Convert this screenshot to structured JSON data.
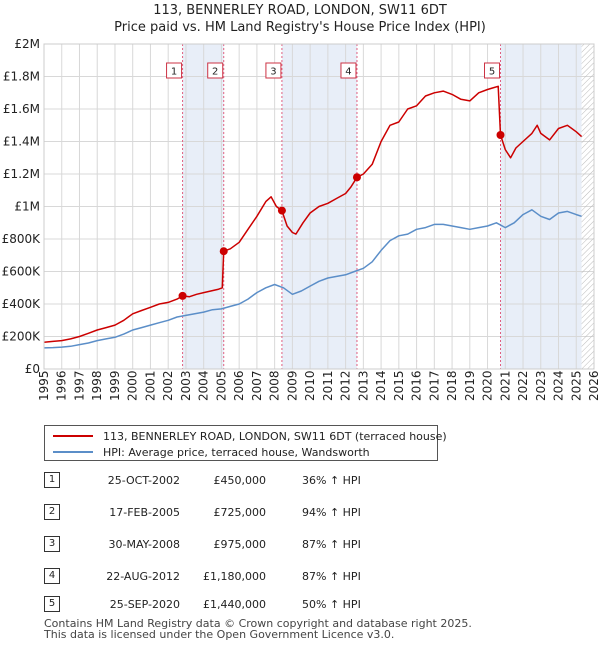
{
  "chart_data": {
    "type": "line",
    "title": "113, BENNERLEY ROAD, LONDON, SW11 6DT",
    "subtitle": "Price paid vs. HM Land Registry's House Price Index (HPI)",
    "xlim": [
      1995,
      2026
    ],
    "ylim": [
      0,
      2000000
    ],
    "y_ticks": [
      0,
      200000,
      400000,
      600000,
      800000,
      1000000,
      1200000,
      1400000,
      1600000,
      1800000,
      2000000
    ],
    "y_tick_labels": [
      "£0",
      "£200K",
      "£400K",
      "£600K",
      "£800K",
      "£1M",
      "£1.2M",
      "£1.4M",
      "£1.6M",
      "£1.8M",
      "£2M"
    ],
    "x_ticks": [
      1995,
      1996,
      1997,
      1998,
      1999,
      2000,
      2001,
      2002,
      2003,
      2004,
      2005,
      2006,
      2007,
      2008,
      2009,
      2010,
      2011,
      2012,
      2013,
      2014,
      2015,
      2016,
      2017,
      2018,
      2019,
      2020,
      2021,
      2022,
      2023,
      2024,
      2025,
      2026
    ],
    "x_tick_labels": [
      "1995",
      "1996",
      "1997",
      "1998",
      "1999",
      "2000",
      "2001",
      "2002",
      "2003",
      "2004",
      "2005",
      "2006",
      "2007",
      "2008",
      "2009",
      "2010",
      "2011",
      "2012",
      "2013",
      "2014",
      "2015",
      "2016",
      "2017",
      "2018",
      "2019",
      "2020",
      "2021",
      "2022",
      "2023",
      "2024",
      "2025",
      "2026"
    ],
    "grid": true,
    "series": [
      {
        "name": "113, BENNERLEY ROAD, LONDON, SW11 6DT (terraced house)",
        "color": "#cc0000",
        "x": [
          1995.0,
          1995.5,
          1996.0,
          1996.5,
          1997.0,
          1997.5,
          1998.0,
          1998.5,
          1999.0,
          1999.5,
          2000.0,
          2000.5,
          2001.0,
          2001.5,
          2002.0,
          2002.5,
          2002.81,
          2003.2,
          2003.6,
          2004.0,
          2004.4,
          2004.8,
          2005.05,
          2005.13,
          2005.5,
          2006.0,
          2006.5,
          2007.0,
          2007.5,
          2007.8,
          2008.1,
          2008.41,
          2008.7,
          2009.0,
          2009.2,
          2009.6,
          2010.0,
          2010.5,
          2011.0,
          2011.5,
          2012.0,
          2012.3,
          2012.64,
          2013.0,
          2013.5,
          2014.0,
          2014.5,
          2015.0,
          2015.5,
          2016.0,
          2016.5,
          2017.0,
          2017.5,
          2018.0,
          2018.5,
          2019.0,
          2019.5,
          2020.0,
          2020.3,
          2020.6,
          2020.73,
          2021.0,
          2021.3,
          2021.6,
          2022.0,
          2022.5,
          2022.8,
          2023.0,
          2023.5,
          2024.0,
          2024.5,
          2025.0,
          2025.3
        ],
        "values": [
          165000,
          170000,
          175000,
          185000,
          200000,
          220000,
          240000,
          255000,
          270000,
          300000,
          340000,
          360000,
          380000,
          400000,
          410000,
          430000,
          450000,
          445000,
          460000,
          470000,
          480000,
          490000,
          500000,
          725000,
          740000,
          780000,
          860000,
          940000,
          1030000,
          1060000,
          1000000,
          975000,
          880000,
          840000,
          830000,
          900000,
          960000,
          1000000,
          1020000,
          1050000,
          1080000,
          1120000,
          1180000,
          1200000,
          1260000,
          1400000,
          1500000,
          1520000,
          1600000,
          1620000,
          1680000,
          1700000,
          1710000,
          1690000,
          1660000,
          1650000,
          1700000,
          1720000,
          1730000,
          1740000,
          1440000,
          1350000,
          1300000,
          1360000,
          1400000,
          1450000,
          1500000,
          1450000,
          1410000,
          1480000,
          1500000,
          1460000,
          1430000
        ]
      },
      {
        "name": "HPI: Average price, terraced house, Wandsworth",
        "color": "#5b8ec8",
        "x": [
          1995.0,
          1995.5,
          1996.0,
          1996.5,
          1997.0,
          1997.5,
          1998.0,
          1998.5,
          1999.0,
          1999.5,
          2000.0,
          2000.5,
          2001.0,
          2001.5,
          2002.0,
          2002.5,
          2003.0,
          2003.5,
          2004.0,
          2004.5,
          2005.0,
          2005.5,
          2006.0,
          2006.5,
          2007.0,
          2007.5,
          2008.0,
          2008.5,
          2009.0,
          2009.5,
          2010.0,
          2010.5,
          2011.0,
          2011.5,
          2012.0,
          2012.5,
          2013.0,
          2013.5,
          2014.0,
          2014.5,
          2015.0,
          2015.5,
          2016.0,
          2016.5,
          2017.0,
          2017.5,
          2018.0,
          2018.5,
          2019.0,
          2019.5,
          2020.0,
          2020.5,
          2021.0,
          2021.5,
          2022.0,
          2022.5,
          2023.0,
          2023.5,
          2024.0,
          2024.5,
          2025.0,
          2025.3
        ],
        "values": [
          130000,
          132000,
          135000,
          140000,
          150000,
          160000,
          175000,
          185000,
          195000,
          215000,
          240000,
          255000,
          270000,
          285000,
          300000,
          320000,
          330000,
          340000,
          350000,
          365000,
          370000,
          385000,
          400000,
          430000,
          470000,
          500000,
          520000,
          500000,
          460000,
          480000,
          510000,
          540000,
          560000,
          570000,
          580000,
          600000,
          620000,
          660000,
          730000,
          790000,
          820000,
          830000,
          860000,
          870000,
          890000,
          890000,
          880000,
          870000,
          860000,
          870000,
          880000,
          900000,
          870000,
          900000,
          950000,
          980000,
          940000,
          920000,
          960000,
          970000,
          950000,
          940000
        ]
      }
    ],
    "sales": [
      {
        "num": "1",
        "x": 2002.81,
        "value": 450000,
        "date": "25-OCT-2002",
        "price": "£450,000",
        "hpi": "36% ↑ HPI"
      },
      {
        "num": "2",
        "x": 2005.13,
        "value": 725000,
        "date": "17-FEB-2005",
        "price": "£725,000",
        "hpi": "94% ↑ HPI"
      },
      {
        "num": "3",
        "x": 2008.41,
        "value": 975000,
        "date": "30-MAY-2008",
        "price": "£975,000",
        "hpi": "87% ↑ HPI"
      },
      {
        "num": "4",
        "x": 2012.64,
        "value": 1180000,
        "date": "22-AUG-2012",
        "price": "£1,180,000",
        "hpi": "87% ↑ HPI"
      },
      {
        "num": "5",
        "x": 2020.73,
        "value": 1440000,
        "date": "25-SEP-2020",
        "price": "£1,440,000",
        "hpi": "50% ↑ HPI"
      }
    ],
    "shaded_periods": [
      [
        2002.81,
        2005.13
      ],
      [
        2008.41,
        2012.64
      ],
      [
        2020.73,
        2025.3
      ]
    ],
    "hatched_from": 2025.3,
    "legend_position": "below"
  },
  "legend": {
    "item1": "113, BENNERLEY ROAD, LONDON, SW11 6DT (terraced house)",
    "item2": "HPI: Average price, terraced house, Wandsworth"
  },
  "footer": {
    "line1": "Contains HM Land Registry data © Crown copyright and database right 2025.",
    "line2": "This data is licensed under the Open Government Licence v3.0."
  }
}
